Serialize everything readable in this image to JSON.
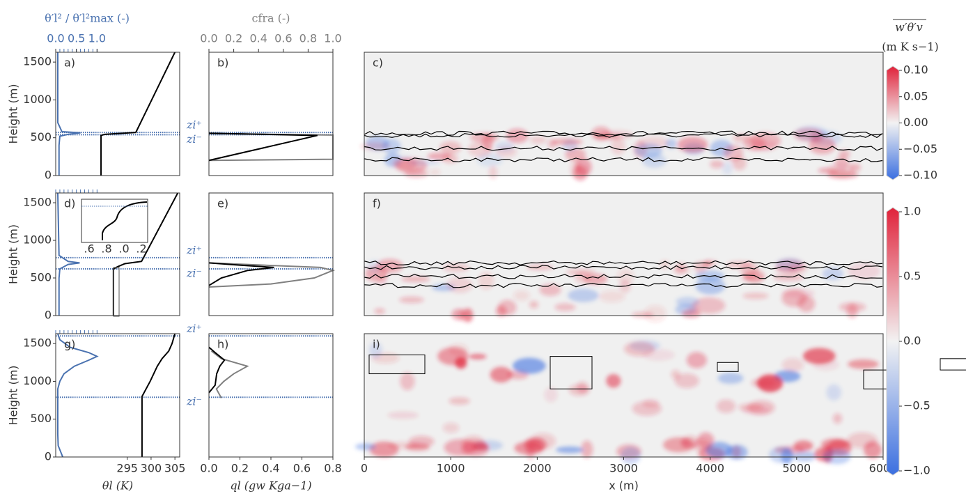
{
  "chart_data": [
    {
      "type": "profile",
      "label": "a)",
      "ylabel": "Height (m)",
      "ylim": [
        0,
        1630
      ],
      "yticks": [
        0,
        500,
        1000,
        1500
      ],
      "xlim": [
        280,
        306
      ],
      "x2lim": [
        0,
        3
      ],
      "x2ticks": [
        {
          "value": 0,
          "label": "0.0"
        },
        {
          "value": 0.5,
          "label": "0.5"
        },
        {
          "value": 1,
          "label": "1.0"
        }
      ],
      "x2minor": [
        0,
        0.1,
        0.2,
        0.3,
        0.4,
        0.5,
        0.6,
        0.7,
        0.8,
        0.9,
        1.0
      ],
      "x2label": "θ′l² / θ′l²max (-)",
      "zi": [
        {
          "label": "zi⁺",
          "value": 570
        },
        {
          "label": "zi⁻",
          "value": 540
        }
      ],
      "series": [
        {
          "color": "#000000",
          "heights": [
            0,
            530,
            545,
            570,
            1630
          ],
          "values": [
            289.5,
            289.5,
            290.3,
            296.8,
            305.0
          ]
        },
        {
          "color": "#4a72b0",
          "axis": "x2",
          "heights": [
            0,
            400,
            520,
            545,
            565,
            580,
            700,
            1630
          ],
          "values": [
            0.08,
            0.08,
            0.1,
            0.3,
            0.6,
            0.15,
            0.05,
            0.05
          ]
        }
      ]
    },
    {
      "type": "profile",
      "label": "b)",
      "ylim": [
        0,
        1630
      ],
      "xlim": [
        0,
        0.8
      ],
      "x2lim": [
        0,
        1
      ],
      "x2ticks": [
        {
          "value": 0,
          "label": "0.0"
        },
        {
          "value": 0.2,
          "label": "0.2"
        },
        {
          "value": 0.4,
          "label": "0.4"
        },
        {
          "value": 0.6,
          "label": "0.6"
        },
        {
          "value": 0.8,
          "label": "0.8"
        },
        {
          "value": 1,
          "label": "1.0"
        }
      ],
      "x2label": "cfra (-)",
      "series": [
        {
          "color": "#808080",
          "axis": "x2",
          "heights": [
            200,
            215,
            535,
            555
          ],
          "values": [
            0,
            1,
            1,
            0
          ]
        },
        {
          "color": "#000000",
          "heights": [
            200,
            530,
            560
          ],
          "values": [
            0,
            0.7,
            0
          ]
        }
      ]
    },
    {
      "type": "heatmap",
      "label": "c)",
      "xlim": [
        0,
        6000
      ],
      "ylim": [
        0,
        1630
      ]
    },
    {
      "type": "profile",
      "label": "d)",
      "ylabel": "Height (m)",
      "ylim": [
        0,
        1630
      ],
      "yticks": [
        0,
        500,
        1000,
        1500
      ],
      "xlim": [
        280,
        306
      ],
      "x2lim": [
        0,
        3
      ],
      "x2minor": [
        0,
        0.1,
        0.2,
        0.3,
        0.4,
        0.5,
        0.6,
        0.7,
        0.8,
        0.9,
        1.0
      ],
      "zi": [
        {
          "label": "zi⁺",
          "value": 770
        },
        {
          "label": "zi⁻",
          "value": 620
        }
      ],
      "inset": {
        "xticklabels": [
          ".6",
          ".8",
          ".0",
          ".2"
        ]
      },
      "series": [
        {
          "color": "#000000",
          "heights": [
            0,
            620,
            650,
            690,
            720,
            1630
          ],
          "values": [
            292.1,
            292.1,
            293.0,
            294.5,
            298,
            305.6
          ]
        },
        {
          "color": "#4a72b0",
          "axis": "x2",
          "heights": [
            0,
            500,
            620,
            680,
            700,
            720,
            800,
            1630
          ],
          "values": [
            0.08,
            0.08,
            0.1,
            0.3,
            0.58,
            0.3,
            0.08,
            0.05
          ]
        }
      ]
    },
    {
      "type": "profile",
      "label": "e)",
      "ylim": [
        0,
        1630
      ],
      "xlim": [
        0,
        0.8
      ],
      "x2lim": [
        0,
        1
      ],
      "series": [
        {
          "color": "#808080",
          "axis": "x2",
          "heights": [
            380,
            420,
            500,
            600,
            640,
            700
          ],
          "values": [
            0,
            0.5,
            0.85,
            1,
            0.9,
            0
          ]
        },
        {
          "color": "#000000",
          "heights": [
            400,
            500,
            600,
            640,
            670,
            700
          ],
          "values": [
            0,
            0.08,
            0.25,
            0.42,
            0.2,
            0
          ]
        }
      ]
    },
    {
      "type": "heatmap",
      "label": "f)",
      "xlim": [
        0,
        6000
      ],
      "ylim": [
        0,
        1630
      ]
    },
    {
      "type": "profile",
      "label": "g)",
      "ylabel": "Height (m)",
      "ylim": [
        0,
        1630
      ],
      "yticks": [
        0,
        500,
        1000,
        1500
      ],
      "xlim": [
        280,
        306
      ],
      "x2lim": [
        0,
        3
      ],
      "xticks": [
        295,
        300,
        305
      ],
      "xlabel": "θl (K)",
      "x2minor": [
        0,
        0.1,
        0.2,
        0.3,
        0.4,
        0.5,
        0.6,
        0.7,
        0.8,
        0.9,
        1.0
      ],
      "zi": [
        {
          "label": "zi⁺",
          "value": 1600
        },
        {
          "label": "zi⁻",
          "value": 790
        }
      ],
      "series": [
        {
          "color": "#000000",
          "heights": [
            0,
            800,
            1000,
            1200,
            1300,
            1400,
            1500,
            1630
          ],
          "values": [
            298.1,
            298.1,
            299.8,
            301.3,
            302.3,
            303.7,
            304.4,
            305.0
          ]
        },
        {
          "color": "#4a72b0",
          "axis": "x2",
          "heights": [
            0,
            150,
            300,
            900,
            1000,
            1100,
            1200,
            1280,
            1330,
            1380,
            1450,
            1550,
            1630
          ],
          "values": [
            0.17,
            0.06,
            0.05,
            0.05,
            0.1,
            0.2,
            0.45,
            0.8,
            1.0,
            0.8,
            0.35,
            0.1,
            0.05
          ]
        }
      ]
    },
    {
      "type": "profile",
      "label": "h)",
      "ylim": [
        0,
        1630
      ],
      "xlim": [
        0,
        0.8
      ],
      "x2lim": [
        0,
        1
      ],
      "xticks": [
        {
          "value": 0,
          "label": "0.0"
        },
        {
          "value": 0.2,
          "label": "0.2"
        },
        {
          "value": 0.4,
          "label": "0.4"
        },
        {
          "value": 0.6,
          "label": "0.6"
        },
        {
          "value": 0.8,
          "label": "0.8"
        }
      ],
      "xlabel": "ql (gw Kga−1)",
      "series": [
        {
          "color": "#808080",
          "axis": "x2",
          "heights": [
            780,
            900,
            1000,
            1100,
            1200,
            1300,
            1400
          ],
          "values": [
            0.1,
            0.06,
            0.12,
            0.2,
            0.31,
            0.1,
            0.02
          ]
        },
        {
          "color": "#000000",
          "heights": [
            850,
            950,
            1100,
            1200,
            1280,
            1380,
            1450
          ],
          "values": [
            0,
            0.04,
            0.05,
            0.07,
            0.1,
            0.04,
            0
          ]
        }
      ]
    },
    {
      "type": "heatmap",
      "label": "i)",
      "xlim": [
        0,
        6000
      ],
      "ylim": [
        0,
        1630
      ],
      "xticks": [
        0,
        1000,
        2000,
        3000,
        4000,
        5000,
        6000
      ],
      "xlabel": "x (m)"
    },
    {
      "type": "colorbar",
      "title": "w′θ′v",
      "units": "(m K s−1)",
      "clim": [
        -0.1,
        0.1
      ],
      "cticks": [
        {
          "value": 0.1,
          "label": "0.10"
        },
        {
          "value": 0.05,
          "label": "0.05"
        },
        {
          "value": 0,
          "label": "0.00"
        },
        {
          "value": -0.05,
          "label": "−0.05"
        },
        {
          "value": -0.1,
          "label": "−0.10"
        }
      ]
    },
    {
      "type": "colorbar",
      "clim": [
        -1,
        1
      ],
      "cticks": [
        {
          "value": 1,
          "label": "1.0"
        },
        {
          "value": 0.5,
          "label": "0.5"
        },
        {
          "value": 0,
          "label": "0.0"
        },
        {
          "value": -0.5,
          "label": "−0.5"
        },
        {
          "value": -1,
          "label": "−1.0"
        }
      ]
    }
  ]
}
